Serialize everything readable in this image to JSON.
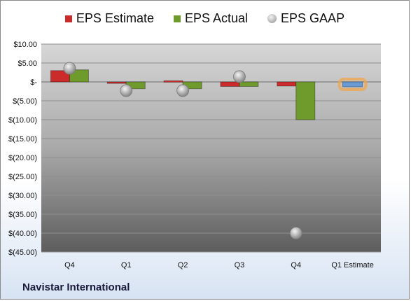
{
  "company": "Navistar International",
  "legend": {
    "estimate": "EPS Estimate",
    "actual": "EPS Actual",
    "gaap": "EPS GAAP"
  },
  "colors": {
    "estimate": "#cc2b2b",
    "actual": "#6f9a2c",
    "gaap": "#a8a8a8",
    "next_estimate": "#6a9bd4",
    "next_estimate_glow": "#f2a54a"
  },
  "chart_data": {
    "type": "bar",
    "categories": [
      "Q4",
      "Q1",
      "Q2",
      "Q3",
      "Q4",
      "Q1 Estimate"
    ],
    "ylim": [
      -45,
      10
    ],
    "yticks": [
      10,
      5,
      0,
      -5,
      -10,
      -15,
      -20,
      -25,
      -30,
      -35,
      -40,
      -45
    ],
    "ytick_labels": [
      "$10.00",
      "$5.00",
      "$-",
      "$(5.00)",
      "$(10.00)",
      "$(15.00)",
      "$(20.00)",
      "$(25.00)",
      "$(30.00)",
      "$(35.00)",
      "$(40.00)",
      "$(45.00)"
    ],
    "series": [
      {
        "name": "EPS Estimate",
        "type": "bar",
        "values": [
          3.0,
          -0.4,
          0.3,
          -1.2,
          -1.1,
          null
        ]
      },
      {
        "name": "EPS Actual",
        "type": "bar",
        "values": [
          3.2,
          -1.8,
          -1.8,
          -1.2,
          -10.0,
          null
        ]
      },
      {
        "name": "EPS GAAP",
        "type": "scatter",
        "values": [
          3.6,
          -2.3,
          -2.3,
          1.4,
          -40.0,
          null
        ]
      }
    ],
    "next_estimate": {
      "category": "Q1 Estimate",
      "value": -1.3
    },
    "grid": true,
    "legend_position": "top"
  }
}
